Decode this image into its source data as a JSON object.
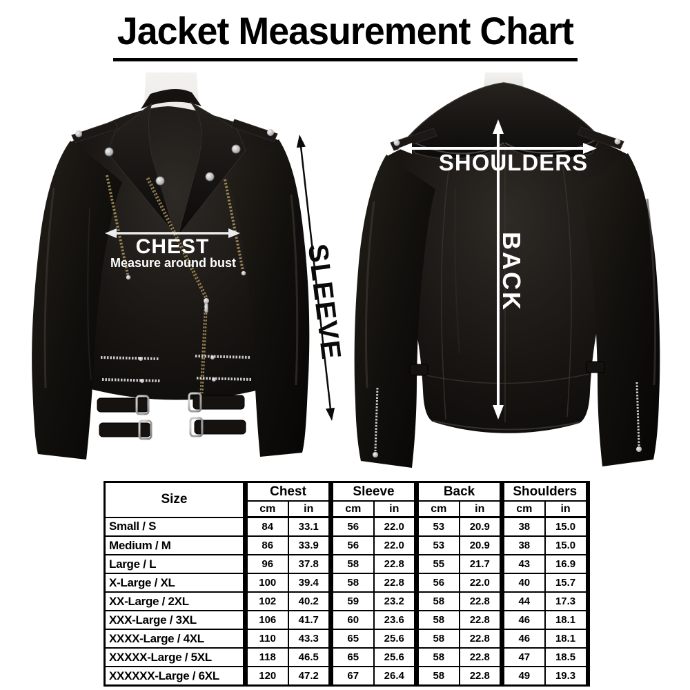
{
  "title": "Jacket Measurement Chart",
  "front_view": {
    "chest_label": "CHEST",
    "chest_sublabel": "Measure around bust",
    "sleeve_label": "SLEEVE"
  },
  "back_view": {
    "shoulders_label": "SHOULDERS",
    "back_label": "BACK"
  },
  "colors": {
    "background": "#ffffff",
    "jacket_black": "#12100e",
    "arrow_white": "#ffffff",
    "arrow_black": "#0a0a0a",
    "mannequin": "#ecebe8",
    "hardware_silver": "#c9c9c9",
    "zip_brass": "#9b8557",
    "table_border": "#000000"
  },
  "table": {
    "col_groups": [
      "Size",
      "Chest",
      "Sleeve",
      "Back",
      "Shoulders"
    ],
    "unit_headers": [
      "cm",
      "in"
    ],
    "rows": [
      {
        "size": "Small / S",
        "chest_cm": "84",
        "chest_in": "33.1",
        "sleeve_cm": "56",
        "sleeve_in": "22.0",
        "back_cm": "53",
        "back_in": "20.9",
        "shoulders_cm": "38",
        "shoulders_in": "15.0"
      },
      {
        "size": "Medium / M",
        "chest_cm": "86",
        "chest_in": "33.9",
        "sleeve_cm": "56",
        "sleeve_in": "22.0",
        "back_cm": "53",
        "back_in": "20.9",
        "shoulders_cm": "38",
        "shoulders_in": "15.0"
      },
      {
        "size": "Large / L",
        "chest_cm": "96",
        "chest_in": "37.8",
        "sleeve_cm": "58",
        "sleeve_in": "22.8",
        "back_cm": "55",
        "back_in": "21.7",
        "shoulders_cm": "43",
        "shoulders_in": "16.9"
      },
      {
        "size": "X-Large / XL",
        "chest_cm": "100",
        "chest_in": "39.4",
        "sleeve_cm": "58",
        "sleeve_in": "22.8",
        "back_cm": "56",
        "back_in": "22.0",
        "shoulders_cm": "40",
        "shoulders_in": "15.7"
      },
      {
        "size": "XX-Large / 2XL",
        "chest_cm": "102",
        "chest_in": "40.2",
        "sleeve_cm": "59",
        "sleeve_in": "23.2",
        "back_cm": "58",
        "back_in": "22.8",
        "shoulders_cm": "44",
        "shoulders_in": "17.3"
      },
      {
        "size": "XXX-Large / 3XL",
        "chest_cm": "106",
        "chest_in": "41.7",
        "sleeve_cm": "60",
        "sleeve_in": "23.6",
        "back_cm": "58",
        "back_in": "22.8",
        "shoulders_cm": "46",
        "shoulders_in": "18.1"
      },
      {
        "size": "XXXX-Large / 4XL",
        "chest_cm": "110",
        "chest_in": "43.3",
        "sleeve_cm": "65",
        "sleeve_in": "25.6",
        "back_cm": "58",
        "back_in": "22.8",
        "shoulders_cm": "46",
        "shoulders_in": "18.1"
      },
      {
        "size": "XXXXX-Large / 5XL",
        "chest_cm": "118",
        "chest_in": "46.5",
        "sleeve_cm": "65",
        "sleeve_in": "25.6",
        "back_cm": "58",
        "back_in": "22.8",
        "shoulders_cm": "47",
        "shoulders_in": "18.5"
      },
      {
        "size": "XXXXXX-Large / 6XL",
        "chest_cm": "120",
        "chest_in": "47.2",
        "sleeve_cm": "67",
        "sleeve_in": "26.4",
        "back_cm": "58",
        "back_in": "22.8",
        "shoulders_cm": "49",
        "shoulders_in": "19.3"
      }
    ]
  }
}
